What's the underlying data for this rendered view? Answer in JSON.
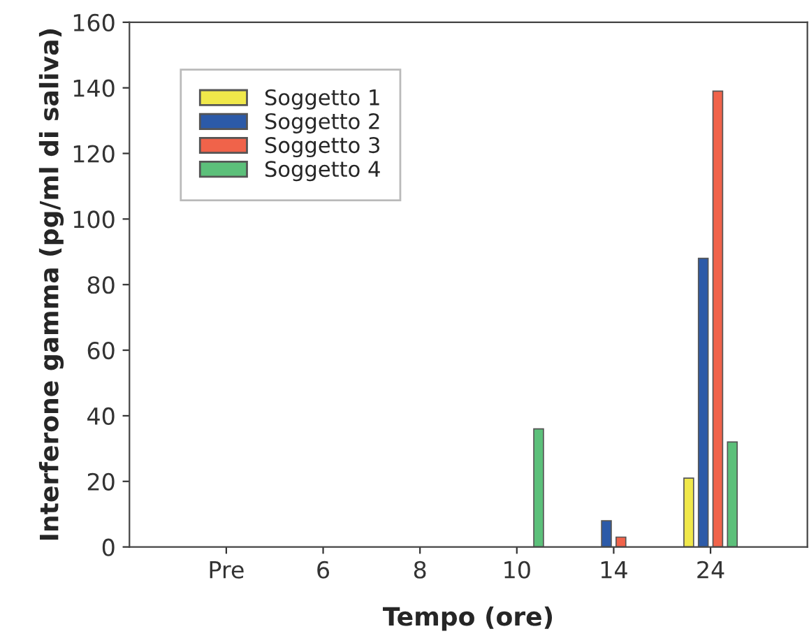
{
  "chart_data": {
    "type": "bar",
    "xlabel": "Tempo (ore)",
    "ylabel": "Interferone gamma (pg/ml di saliva)",
    "categories": [
      "Pre",
      "6",
      "8",
      "10",
      "14",
      "24"
    ],
    "series": [
      {
        "name": "Soggetto 1",
        "color": "#f0e84a",
        "values": [
          null,
          null,
          null,
          null,
          null,
          21
        ]
      },
      {
        "name": "Soggetto 2",
        "color": "#2c5aa8",
        "values": [
          null,
          null,
          null,
          null,
          8,
          88
        ]
      },
      {
        "name": "Soggetto 3",
        "color": "#f0634a",
        "values": [
          null,
          null,
          null,
          null,
          3,
          139
        ]
      },
      {
        "name": "Soggetto 4",
        "color": "#5cc07a",
        "values": [
          null,
          null,
          null,
          36,
          null,
          32
        ]
      }
    ],
    "ylim": [
      0,
      160
    ],
    "yticks": [
      0,
      20,
      40,
      60,
      80,
      100,
      120,
      140,
      160
    ],
    "grid": false,
    "legend": "top left"
  }
}
